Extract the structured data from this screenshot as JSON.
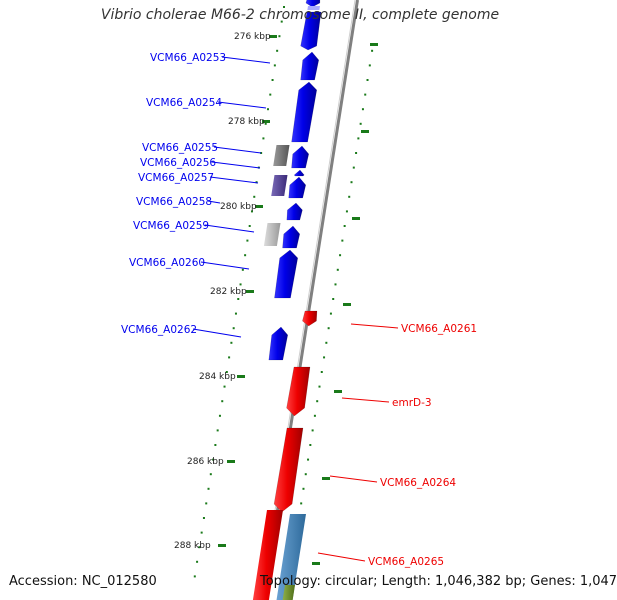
{
  "title": "Vibrio cholerae M66-2 chromosome II, complete genome",
  "footer": {
    "accession": "Accession: NC_012580",
    "topology": "Topology: circular; Length: 1,046,382 bp; Genes: 1,047"
  },
  "colors": {
    "forward": "#0000ee",
    "reverse": "#ee0000",
    "backbone": "#808080",
    "tick": "#1a7a1a",
    "other_gene": "#4682b4",
    "pseudo_dark": "#707070",
    "pseudo_light": "#b8b8b8",
    "purple": "#5a4a9a",
    "green_gene": "#6b8e23"
  },
  "ticks": [
    {
      "label": "276 kbp"
    },
    {
      "label": "278 kbp"
    },
    {
      "label": "280 kbp"
    },
    {
      "label": "282 kbp"
    },
    {
      "label": "284 kbp"
    },
    {
      "label": "286 kbp"
    },
    {
      "label": "288 kbp"
    }
  ],
  "genes_forward": [
    {
      "label": "VCM66_A0253"
    },
    {
      "label": "VCM66_A0254"
    },
    {
      "label": "VCM66_A0255"
    },
    {
      "label": "VCM66_A0256"
    },
    {
      "label": "VCM66_A0257"
    },
    {
      "label": "VCM66_A0258"
    },
    {
      "label": "VCM66_A0259"
    },
    {
      "label": "VCM66_A0260"
    },
    {
      "label": "VCM66_A0262"
    }
  ],
  "genes_reverse": [
    {
      "label": "VCM66_A0261"
    },
    {
      "label": "emrD-3"
    },
    {
      "label": "VCM66_A0264"
    },
    {
      "label": "VCM66_A0265"
    }
  ]
}
